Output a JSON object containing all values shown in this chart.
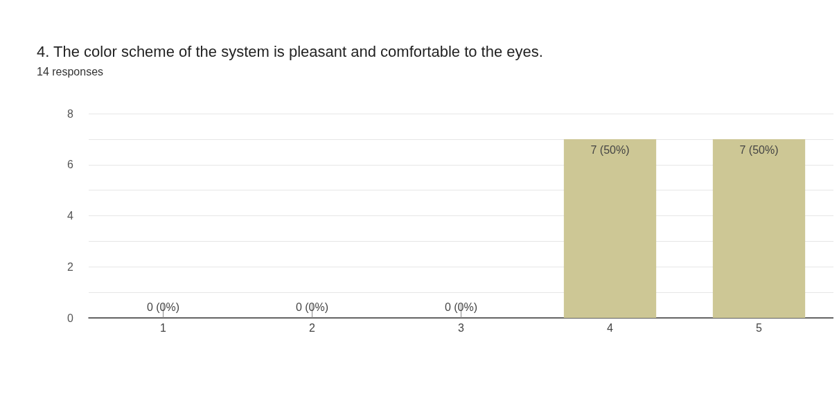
{
  "chart_data": {
    "type": "bar",
    "title": "4. The color scheme of the system is pleasant and comfortable to the eyes.",
    "subtitle": "14 responses",
    "categories": [
      "1",
      "2",
      "3",
      "4",
      "5"
    ],
    "values": [
      0,
      0,
      0,
      7,
      7
    ],
    "value_labels": [
      "0 (0%)",
      "0 (0%)",
      "0 (0%)",
      "7 (50%)",
      "7 (50%)"
    ],
    "color": "#cdc795",
    "ylim": [
      0,
      8
    ],
    "yticks": [
      0,
      {
        "value": 1,
        "label": null
      },
      2,
      {
        "value": 3,
        "label": null
      },
      4,
      {
        "value": 5,
        "label": null
      },
      6,
      {
        "value": 7,
        "label": null
      },
      8
    ],
    "grid": "y"
  }
}
